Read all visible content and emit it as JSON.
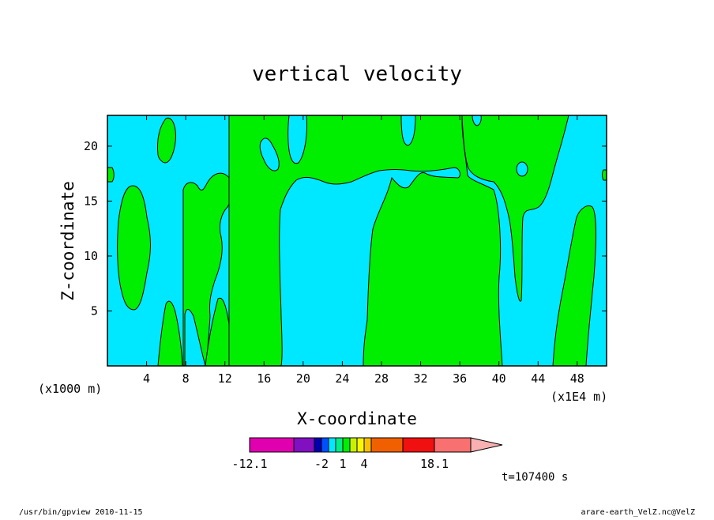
{
  "chart_data": {
    "type": "heatmap",
    "title": "vertical velocity",
    "xlabel": "X-coordinate",
    "ylabel": "Z-coordinate",
    "x_scale_note_left": "(x1000 m)",
    "x_scale_note_right": "(x1E4 m)",
    "xlim": [
      0,
      51
    ],
    "ylim": [
      0,
      22.8
    ],
    "x_ticks": [
      "4",
      "8",
      "12",
      "16",
      "20",
      "24",
      "28",
      "32",
      "36",
      "40",
      "44",
      "48"
    ],
    "y_ticks": [
      "5",
      "10",
      "15",
      "20"
    ],
    "grid": false,
    "regions": [
      {
        "level": "-2 to 1",
        "color": "#00e8ff",
        "description": "background"
      },
      {
        "level": "1 to 4",
        "color": "#00ee00",
        "description": "updraft zones"
      }
    ],
    "green_regions_approx_x_ranges": [
      [
        1.2,
        4.6
      ],
      [
        5.3,
        7.8
      ],
      [
        7.8,
        11.7
      ],
      [
        12.5,
        18.5
      ],
      [
        18.5,
        28
      ],
      [
        26.5,
        40.5
      ],
      [
        36,
        45
      ],
      [
        45.5,
        51
      ]
    ],
    "colorbar": {
      "colors": [
        "#e000b0",
        "#8010c0",
        "#0000b0",
        "#0050ff",
        "#00e8ff",
        "#00ee88",
        "#00ee00",
        "#c8f000",
        "#f8f800",
        "#f8c000",
        "#f06000",
        "#f01010",
        "#f87070",
        "#f8b0b0"
      ],
      "labels": [
        "-12.1",
        "-2",
        "1",
        "4",
        "18.1"
      ],
      "extend": "max"
    },
    "time_label": "t=107400 s"
  },
  "footer": {
    "left": "/usr/bin/gpview  2010-11-15",
    "right": "arare-earth_VelZ.nc@VelZ"
  }
}
